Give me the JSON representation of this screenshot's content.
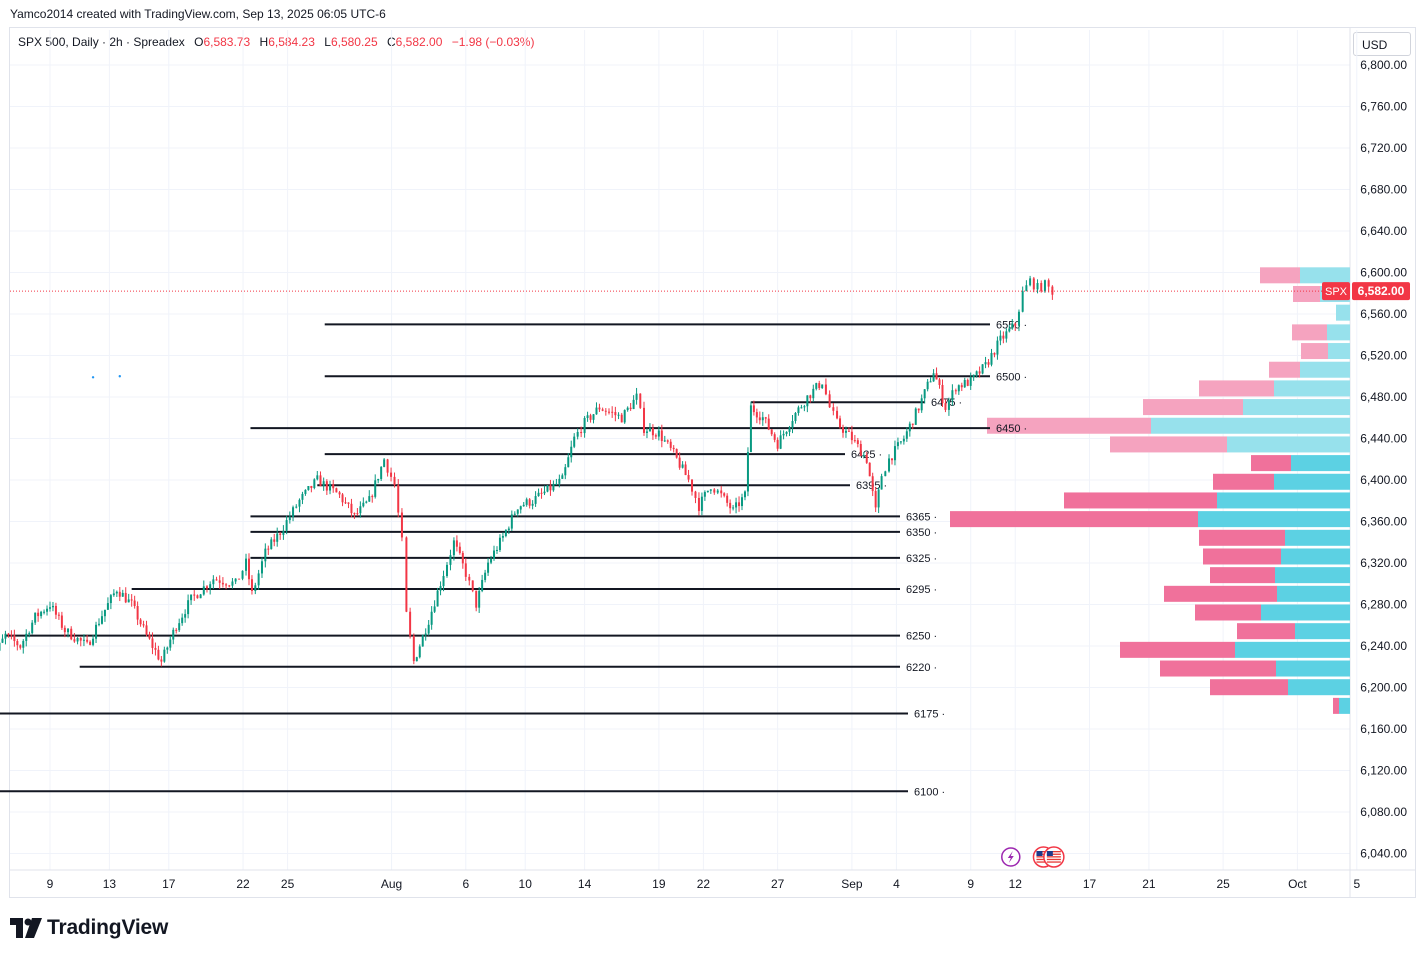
{
  "header": {
    "credit": "Yamco2014 created with TradingView.com, Sep 13, 2025 06:05 UTC-6"
  },
  "legend": {
    "symbol": "SPX 500, Daily · 2h · Spreadex",
    "o_label": "O",
    "o_value": "6,583.73",
    "h_label": "H",
    "h_value": "6,584.23",
    "l_label": "L",
    "l_value": "6,580.25",
    "c_label": "C",
    "c_value": "6,582.00",
    "change": "−1.98 (−0.03%)"
  },
  "currency_button": "USD",
  "brand": {
    "name": "TradingView"
  },
  "colors": {
    "up": "#089981",
    "down": "#f23645",
    "vp_up": "#5cd1e3",
    "vp_down": "#f0719b",
    "vp_up_light": "#97e1ec",
    "vp_down_light": "#f5a3bf",
    "price_line": "#f23645",
    "grid": "#f0f3fa"
  },
  "chart_data": {
    "type": "candlestick",
    "symbol": "SPX 500",
    "ylim": [
      6020,
      6820
    ],
    "y_ticks": [
      6040,
      6080,
      6120,
      6160,
      6200,
      6240,
      6280,
      6320,
      6360,
      6400,
      6440,
      6480,
      6520,
      6560,
      6600,
      6640,
      6680,
      6720,
      6760,
      6800
    ],
    "y_tick_labels": [
      "6,040.00",
      "6,080.00",
      "6,120.00",
      "6,160.00",
      "6,200.00",
      "6,240.00",
      "6,280.00",
      "6,320.00",
      "6,360.00",
      "6,400.00",
      "6,440.00",
      "6,480.00",
      "6,520.00",
      "6,560.00",
      "6,600.00",
      "6,640.00",
      "6,680.00",
      "6,720.00",
      "6,760.00",
      "6,800.00"
    ],
    "x_tick_labels": [
      "9",
      "13",
      "17",
      "22",
      "25",
      "Aug",
      "6",
      "10",
      "14",
      "19",
      "22",
      "27",
      "Sep",
      "4",
      "9",
      "12",
      "17",
      "21",
      "25",
      "Oct",
      "5"
    ],
    "x_tick_days": [
      8,
      12,
      16,
      21,
      24,
      31,
      36,
      40,
      44,
      49,
      52,
      57,
      62,
      65,
      70,
      73,
      78,
      82,
      87,
      92,
      96
    ],
    "last_price": {
      "label": "SPX",
      "value": 6582.0,
      "text": "6,582.00"
    },
    "price_path": [
      [
        3.5,
        6255
      ],
      [
        4.2,
        6230
      ],
      [
        5,
        6250
      ],
      [
        6,
        6240
      ],
      [
        7,
        6268
      ],
      [
        8,
        6280
      ],
      [
        9,
        6255
      ],
      [
        10.5,
        6240
      ],
      [
        11.5,
        6270
      ],
      [
        12.5,
        6295
      ],
      [
        13.5,
        6280
      ],
      [
        14.5,
        6250
      ],
      [
        15.5,
        6225
      ],
      [
        16.5,
        6260
      ],
      [
        17.5,
        6285
      ],
      [
        19,
        6305
      ],
      [
        20.5,
        6300
      ],
      [
        21.2,
        6320
      ],
      [
        21.6,
        6290
      ],
      [
        22.5,
        6330
      ],
      [
        23.5,
        6350
      ],
      [
        24.8,
        6380
      ],
      [
        26,
        6400
      ],
      [
        27.5,
        6385
      ],
      [
        28.5,
        6365
      ],
      [
        29.5,
        6380
      ],
      [
        30.5,
        6420
      ],
      [
        31.2,
        6395
      ],
      [
        31.7,
        6340
      ],
      [
        32,
        6270
      ],
      [
        32.5,
        6225
      ],
      [
        33.5,
        6265
      ],
      [
        34.5,
        6310
      ],
      [
        35.2,
        6340
      ],
      [
        36,
        6310
      ],
      [
        36.7,
        6280
      ],
      [
        37.5,
        6320
      ],
      [
        38.5,
        6345
      ],
      [
        39.5,
        6375
      ],
      [
        40.5,
        6380
      ],
      [
        41.5,
        6390
      ],
      [
        42.5,
        6400
      ],
      [
        43.3,
        6440
      ],
      [
        44,
        6455
      ],
      [
        45,
        6470
      ],
      [
        46.5,
        6460
      ],
      [
        47.5,
        6480
      ],
      [
        48,
        6450
      ],
      [
        49,
        6445
      ],
      [
        50,
        6425
      ],
      [
        51,
        6400
      ],
      [
        51.7,
        6375
      ],
      [
        52.5,
        6395
      ],
      [
        53.2,
        6385
      ],
      [
        54,
        6370
      ],
      [
        54.8,
        6385
      ],
      [
        55.2,
        6470
      ],
      [
        56,
        6460
      ],
      [
        57,
        6435
      ],
      [
        58,
        6460
      ],
      [
        59,
        6480
      ],
      [
        60,
        6495
      ],
      [
        60.5,
        6470
      ],
      [
        61,
        6455
      ],
      [
        62,
        6440
      ],
      [
        63,
        6420
      ],
      [
        63.6,
        6370
      ],
      [
        64,
        6405
      ],
      [
        64.5,
        6420
      ],
      [
        65.5,
        6440
      ],
      [
        66.5,
        6470
      ],
      [
        67.5,
        6505
      ],
      [
        68.3,
        6470
      ],
      [
        69,
        6490
      ],
      [
        70,
        6495
      ],
      [
        71,
        6510
      ],
      [
        72,
        6535
      ],
      [
        73,
        6550
      ],
      [
        73.5,
        6580
      ],
      [
        74,
        6592
      ],
      [
        74.5,
        6585
      ],
      [
        75,
        6588
      ],
      [
        75.5,
        6582
      ]
    ],
    "levels": [
      {
        "label": "6550",
        "price": 6550,
        "x_start_day": 26.5
      },
      {
        "label": "6500",
        "price": 6500,
        "x_start_day": 26.5
      },
      {
        "label": "6475",
        "price": 6475,
        "x_start_day": 55.2
      },
      {
        "label": "6450",
        "price": 6450,
        "x_start_day": 21.5
      },
      {
        "label": "6425",
        "price": 6425,
        "x_start_day": 26.5
      },
      {
        "label": "6395",
        "price": 6395,
        "x_start_day": 26
      },
      {
        "label": "6365",
        "price": 6365,
        "x_start_day": 21.5
      },
      {
        "label": "6350",
        "price": 6350,
        "x_start_day": 21.5
      },
      {
        "label": "6325",
        "price": 6325,
        "x_start_day": 21.5
      },
      {
        "label": "6295",
        "price": 6295,
        "x_start_day": 13.5
      },
      {
        "label": "6250",
        "price": 6250,
        "x_start_day": 5
      },
      {
        "label": "6220",
        "price": 6220,
        "x_start_day": 10
      },
      {
        "label": "6175",
        "price": 6175,
        "x_start_day": 3.5
      },
      {
        "label": "6100",
        "price": 6100,
        "x_start_day": 3.5
      }
    ],
    "volume_profile": {
      "row_height": 17,
      "rows": [
        {
          "price_top": 6605,
          "up": 50,
          "down": 40,
          "highlighted": true
        },
        {
          "price_top": 6587,
          "up": 30,
          "down": 27,
          "highlighted": true
        },
        {
          "price_top": 6569,
          "up": 14,
          "down": 0,
          "highlighted": true
        },
        {
          "price_top": 6550,
          "up": 23,
          "down": 35,
          "highlighted": true
        },
        {
          "price_top": 6532,
          "up": 22,
          "down": 27,
          "highlighted": true
        },
        {
          "price_top": 6514,
          "up": 50,
          "down": 31,
          "highlighted": true
        },
        {
          "price_top": 6496,
          "up": 76,
          "down": 75,
          "highlighted": true
        },
        {
          "price_top": 6478,
          "up": 107,
          "down": 100,
          "highlighted": true
        },
        {
          "price_top": 6460,
          "up": 199,
          "down": 164,
          "highlighted": true
        },
        {
          "price_top": 6442,
          "up": 123,
          "down": 117,
          "highlighted": true
        },
        {
          "price_top": 6424,
          "up": 59,
          "down": 40,
          "highlighted": false
        },
        {
          "price_top": 6406,
          "up": 76,
          "down": 61,
          "highlighted": false
        },
        {
          "price_top": 6388,
          "up": 133,
          "down": 153,
          "highlighted": false
        },
        {
          "price_top": 6370,
          "up": 152,
          "down": 248,
          "highlighted": false
        },
        {
          "price_top": 6352,
          "up": 65,
          "down": 86,
          "highlighted": false
        },
        {
          "price_top": 6334,
          "up": 69,
          "down": 78,
          "highlighted": false
        },
        {
          "price_top": 6316,
          "up": 75,
          "down": 65,
          "highlighted": false
        },
        {
          "price_top": 6298,
          "up": 73,
          "down": 113,
          "highlighted": false
        },
        {
          "price_top": 6280,
          "up": 89,
          "down": 66,
          "highlighted": false
        },
        {
          "price_top": 6262,
          "up": 55,
          "down": 58,
          "highlighted": false
        },
        {
          "price_top": 6244,
          "up": 115,
          "down": 115,
          "highlighted": false
        },
        {
          "price_top": 6226,
          "up": 74,
          "down": 116,
          "highlighted": false
        },
        {
          "price_top": 6208,
          "up": 62,
          "down": 78,
          "highlighted": false
        },
        {
          "price_top": 6190,
          "up": 11,
          "down": 6,
          "highlighted": false
        }
      ]
    },
    "event_icons": [
      {
        "day": 72.7,
        "icon": "lightning-icon"
      },
      {
        "day": 74.9,
        "icon": "us-flag-icon"
      },
      {
        "day": 75.6,
        "icon": "us-flag-icon"
      }
    ],
    "dots": [
      {
        "day": 10.9,
        "price": 6499,
        "color": "#2196f3"
      },
      {
        "day": 12.7,
        "price": 6500,
        "color": "#2196f3"
      }
    ]
  }
}
